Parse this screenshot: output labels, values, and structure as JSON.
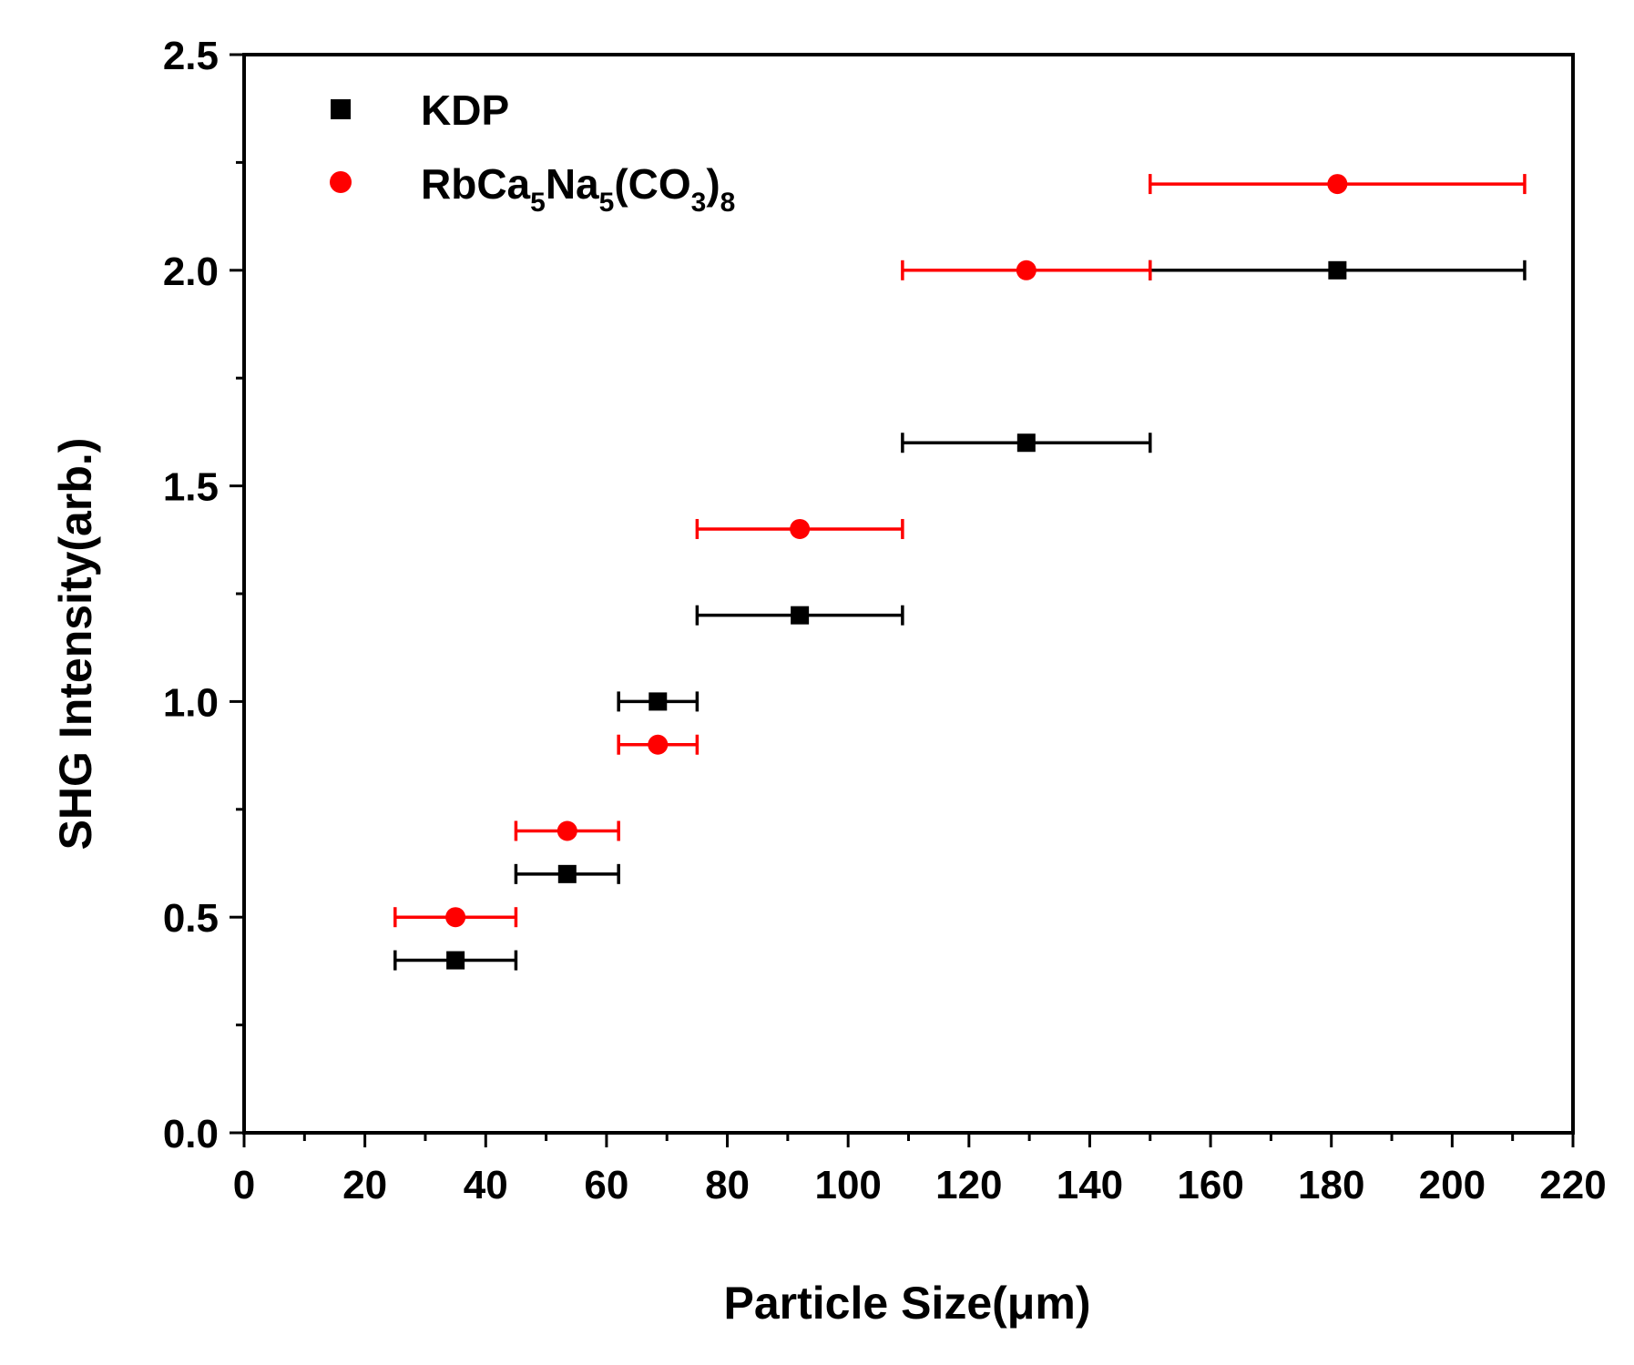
{
  "chart_data": {
    "type": "scatter",
    "title": "",
    "xlabel": "Particle Size(μm)",
    "ylabel": "SHG Intensity(arb.)",
    "xlim": [
      0,
      220
    ],
    "ylim": [
      0,
      2.5
    ],
    "x_ticks": [
      "0",
      "20",
      "40",
      "60",
      "80",
      "100",
      "120",
      "140",
      "160",
      "180",
      "200",
      "220"
    ],
    "y_ticks": [
      "0.0",
      "0.5",
      "1.0",
      "1.5",
      "2.0",
      "2.5"
    ],
    "legend_position": "top-left",
    "series": [
      {
        "name": "KDP",
        "marker": "square",
        "color": "#000000",
        "points": [
          {
            "x": 35,
            "y": 0.4,
            "xmin": 25,
            "xmax": 45
          },
          {
            "x": 53.5,
            "y": 0.6,
            "xmin": 45,
            "xmax": 62
          },
          {
            "x": 68.5,
            "y": 1.0,
            "xmin": 62,
            "xmax": 75
          },
          {
            "x": 92,
            "y": 1.2,
            "xmin": 75,
            "xmax": 109
          },
          {
            "x": 129.5,
            "y": 1.6,
            "xmin": 109,
            "xmax": 150
          },
          {
            "x": 181,
            "y": 2.0,
            "xmin": 150,
            "xmax": 212
          }
        ]
      },
      {
        "name": "RbCa5Na5(CO3)8",
        "marker": "circle",
        "color": "#ff0000",
        "points": [
          {
            "x": 35,
            "y": 0.5,
            "xmin": 25,
            "xmax": 45
          },
          {
            "x": 53.5,
            "y": 0.7,
            "xmin": 45,
            "xmax": 62
          },
          {
            "x": 68.5,
            "y": 0.9,
            "xmin": 62,
            "xmax": 75
          },
          {
            "x": 92,
            "y": 1.4,
            "xmin": 75,
            "xmax": 109
          },
          {
            "x": 129.5,
            "y": 2.0,
            "xmin": 109,
            "xmax": 150
          },
          {
            "x": 181,
            "y": 2.2,
            "xmin": 150,
            "xmax": 212
          }
        ]
      }
    ]
  },
  "legend": {
    "kdp_label": "KDP",
    "rb_label": {
      "base1": "RbCa",
      "sub1": "5",
      "base2": "Na",
      "sub2": "5",
      "base3": "(CO",
      "sub3": "3",
      "base4": ")",
      "sub4": "8"
    }
  }
}
